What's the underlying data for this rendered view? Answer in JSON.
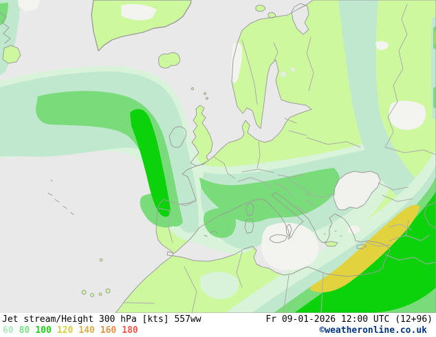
{
  "footer": {
    "title": "Jet stream/Height 300 hPa [kts] 557ww",
    "datetime": "Fr 09-01-2026 12:00 UTC (12+96)",
    "copyright": "©weatheronline.co.uk",
    "copyright_color": "#003388",
    "legend": [
      {
        "label": "60",
        "color": "#a9e9bb"
      },
      {
        "label": "80",
        "color": "#7de085"
      },
      {
        "label": "100",
        "color": "#16cf16"
      },
      {
        "label": "120",
        "color": "#d8ce42"
      },
      {
        "label": "140",
        "color": "#dfae43"
      },
      {
        "label": "160",
        "color": "#ec8e41"
      },
      {
        "label": "180",
        "color": "#ed5345"
      }
    ]
  },
  "map": {
    "region": "Europe / North Atlantic",
    "parameter": "Jet stream wind speed at 300 hPa (kts), shaded bands",
    "sea_color": "#e9e9e9",
    "land_color": "#cdf89e",
    "coast_color": "#9c9c9c",
    "border_color": "#ababab",
    "white_patch_color": "#f3f3ef",
    "black_sea_color": "#f1f1ed",
    "band_colors": {
      "outer_pale": "#d9f3da",
      "pale_60": "#bfe8cf",
      "green_80": "#79db79",
      "green_100": "#0cd20c",
      "yellow_120": "#e2d33e"
    }
  }
}
